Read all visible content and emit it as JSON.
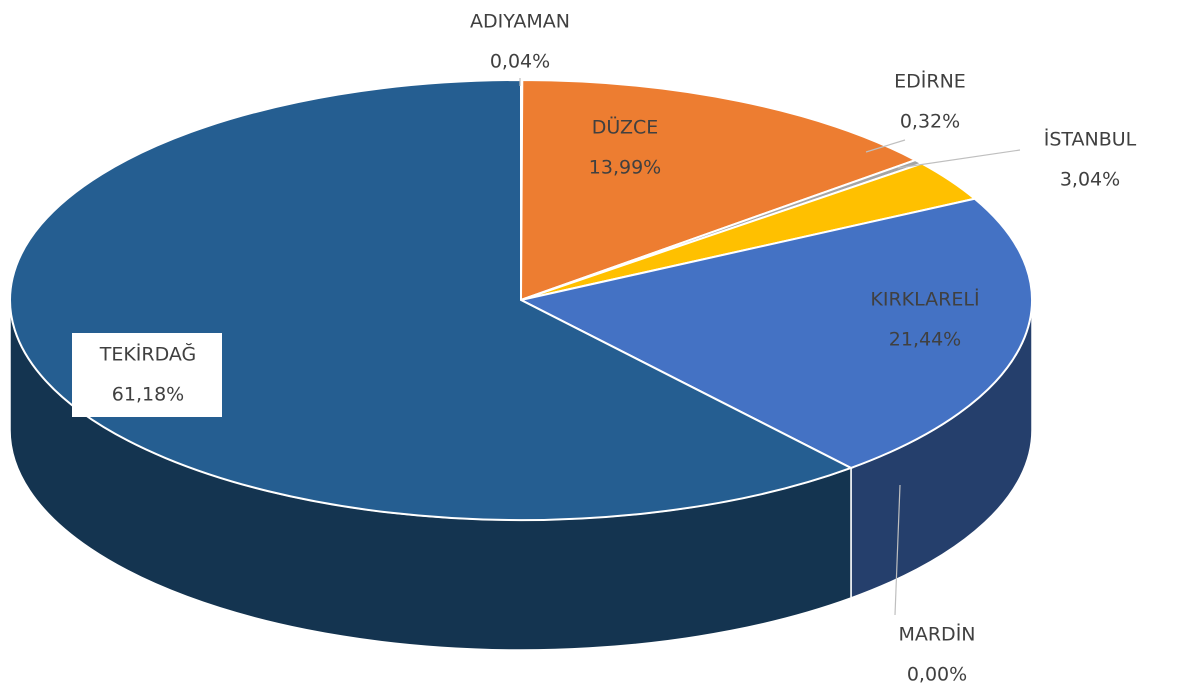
{
  "chart_data": {
    "type": "pie",
    "categories": [
      "ADIYAMAN",
      "DÜZCE",
      "EDİRNE",
      "İSTANBUL",
      "KIRKLARELİ",
      "MARDİN",
      "TEKİRDAĞ"
    ],
    "values": [
      0.04,
      13.99,
      0.32,
      3.04,
      21.44,
      0,
      61.18
    ],
    "value_labels": [
      "0,04%",
      "13,99%",
      "0,32%",
      "3,04%",
      "21,44%",
      "0,00%",
      "61,18%"
    ],
    "colors": [
      "#7f7f7f",
      "#ed7d31",
      "#a5a5a5",
      "#ffc000",
      "#4472c4",
      "#70ad47",
      "#255e91"
    ]
  }
}
